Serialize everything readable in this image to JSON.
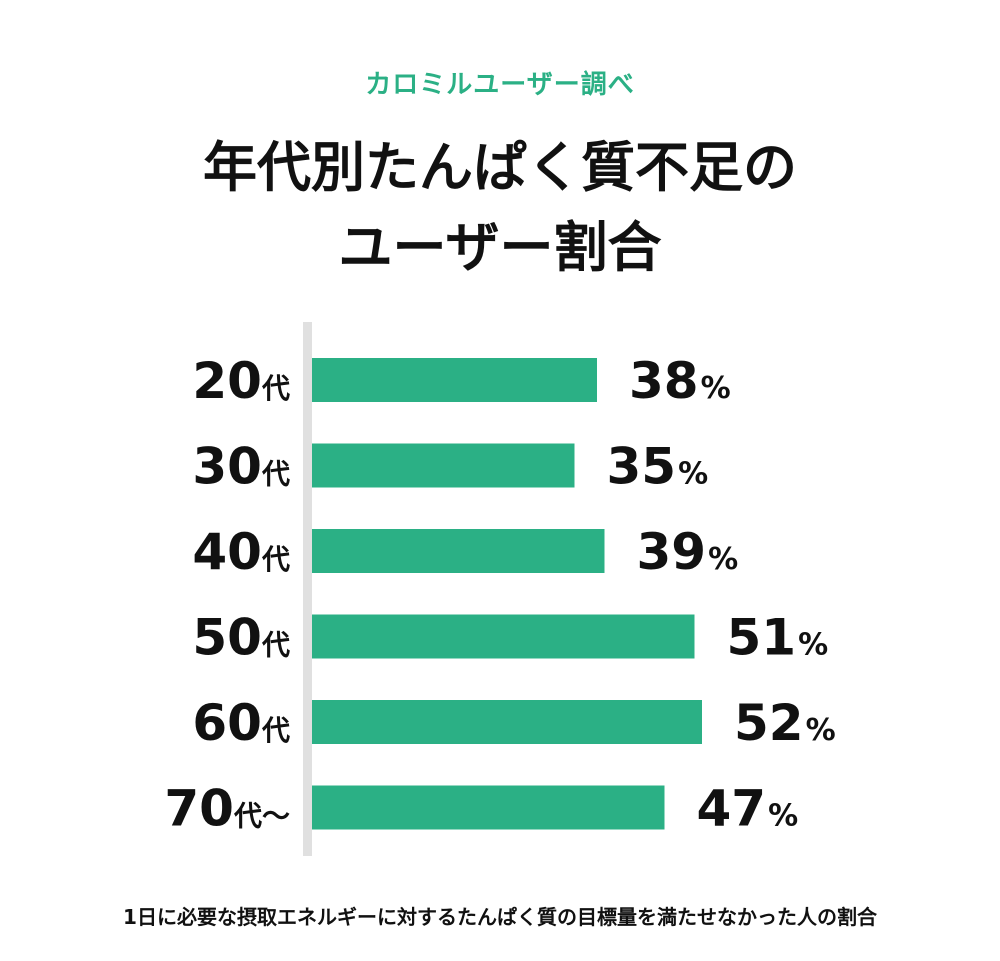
{
  "header": {
    "source": "カロミルユーザー調べ",
    "title_line1": "年代別たんぱく質不足の",
    "title_line2": "ユーザー割合"
  },
  "chart_data": {
    "type": "bar",
    "orientation": "horizontal",
    "categories": [
      {
        "number": "20",
        "suffix": "代"
      },
      {
        "number": "30",
        "suffix": "代"
      },
      {
        "number": "40",
        "suffix": "代"
      },
      {
        "number": "50",
        "suffix": "代"
      },
      {
        "number": "60",
        "suffix": "代"
      },
      {
        "number": "70",
        "suffix": "代〜"
      }
    ],
    "values": [
      38,
      35,
      39,
      51,
      52,
      47
    ],
    "value_unit": "%",
    "bar_color": "#2bb085",
    "axis_color": "#e0e0e0"
  },
  "footnote": "1日に必要な摂取エネルギーに対するたんぱく質の目標量を満たせなかった人の割合"
}
